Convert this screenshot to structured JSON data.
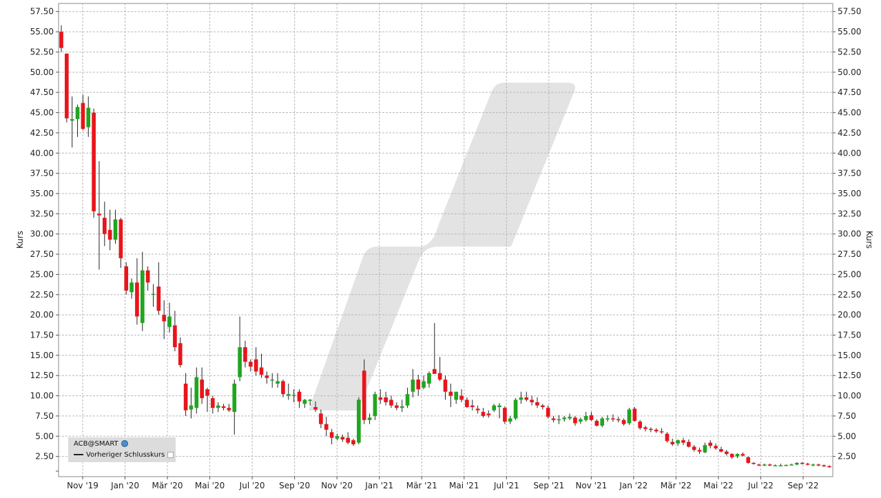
{
  "chart_data": {
    "type": "candlestick",
    "title": "",
    "ylabel_left": "Kurs",
    "ylabel_right": "Kurs",
    "ylim": [
      0,
      58.5
    ],
    "yticks": [
      2.5,
      5,
      7.5,
      10,
      12.5,
      15,
      17.5,
      20,
      22.5,
      25,
      27.5,
      30,
      32.5,
      35,
      37.5,
      40,
      42.5,
      45,
      47.5,
      50,
      52.5,
      55,
      57.5
    ],
    "ytick_labels": [
      "2.50",
      "5.00",
      "7.50",
      "10.00",
      "12.50",
      "15.00",
      "17.50",
      "20.00",
      "22.50",
      "25.00",
      "27.50",
      "30.00",
      "32.50",
      "35.00",
      "37.50",
      "40.00",
      "42.50",
      "45.00",
      "47.50",
      "50.00",
      "52.50",
      "55.00",
      "57.50"
    ],
    "xtick_labels": [
      "Nov '19",
      "Jan '20",
      "Mär '20",
      "Mai '20",
      "Jul '20",
      "Sep '20",
      "Nov '20",
      "Jan '21",
      "Mär '21",
      "Mai '21",
      "Jul '21",
      "Sep '21",
      "Nov '21",
      "Jan '22",
      "Mär '22",
      "Mai '22",
      "Jul '22",
      "Sep '22"
    ],
    "grid": true,
    "legend_placement": "bottom-left",
    "legend": {
      "symbol": "ACB@SMART",
      "reference_line": "Vorheriger Schlusskurs"
    },
    "colors": {
      "up": "#1fa61f",
      "down": "#e8151b",
      "wick": "#222222",
      "grid": "#b8b8b8"
    },
    "candles": [
      [
        55.0,
        55.8,
        52.5,
        53.0
      ],
      [
        52.3,
        52.3,
        43.8,
        44.3
      ],
      [
        44.0,
        47.0,
        40.7,
        44.2
      ],
      [
        44.2,
        46.0,
        42.0,
        45.7
      ],
      [
        46.2,
        47.2,
        42.8,
        43.0
      ],
      [
        43.2,
        47.0,
        42.0,
        45.6
      ],
      [
        45.0,
        45.5,
        32.0,
        32.8
      ],
      [
        32.5,
        39.0,
        25.6,
        32.3
      ],
      [
        32.0,
        34.0,
        28.5,
        30.0
      ],
      [
        30.5,
        33.0,
        28.0,
        29.3
      ],
      [
        29.3,
        33.0,
        28.8,
        31.8
      ],
      [
        31.8,
        32.0,
        25.8,
        27.0
      ],
      [
        26.0,
        26.5,
        22.5,
        23.0
      ],
      [
        22.8,
        24.5,
        22.0,
        24.0
      ],
      [
        24.0,
        27.0,
        18.8,
        19.8
      ],
      [
        19.0,
        27.8,
        18.0,
        25.5
      ],
      [
        25.5,
        26.0,
        23.0,
        24.0
      ],
      [
        22.6,
        23.8,
        21.0,
        22.6
      ],
      [
        23.5,
        26.5,
        20.0,
        20.5
      ],
      [
        20.0,
        21.8,
        17.0,
        19.2
      ],
      [
        18.5,
        21.5,
        17.8,
        19.8
      ],
      [
        18.7,
        20.5,
        15.5,
        16.0
      ],
      [
        16.5,
        17.2,
        13.5,
        13.8
      ],
      [
        11.5,
        12.8,
        7.5,
        8.2
      ],
      [
        8.3,
        11.0,
        7.2,
        8.8
      ],
      [
        8.5,
        13.5,
        7.8,
        12.3
      ],
      [
        12.0,
        13.5,
        9.0,
        9.7
      ],
      [
        10.8,
        11.0,
        8.0,
        10.0
      ],
      [
        9.7,
        10.0,
        7.8,
        8.5
      ],
      [
        8.5,
        9.2,
        8.0,
        8.8
      ],
      [
        8.7,
        9.0,
        8.2,
        8.5
      ],
      [
        8.5,
        9.0,
        8.0,
        8.2
      ],
      [
        8.0,
        12.0,
        5.2,
        11.5
      ],
      [
        12.3,
        19.8,
        11.8,
        16.0
      ],
      [
        16.0,
        16.8,
        13.5,
        14.2
      ],
      [
        14.2,
        14.5,
        13.0,
        13.6
      ],
      [
        14.5,
        16.0,
        12.5,
        13.0
      ],
      [
        13.5,
        15.2,
        12.2,
        12.6
      ],
      [
        12.5,
        13.0,
        11.5,
        12.2
      ],
      [
        12.0,
        12.8,
        11.0,
        12.0
      ],
      [
        11.5,
        12.8,
        11.0,
        11.8
      ],
      [
        11.8,
        12.0,
        9.8,
        10.2
      ],
      [
        10.0,
        11.5,
        9.5,
        10.2
      ],
      [
        10.1,
        10.8,
        9.2,
        10.1
      ],
      [
        10.5,
        10.8,
        8.5,
        9.3
      ],
      [
        9.0,
        9.6,
        8.5,
        9.5
      ],
      [
        9.5,
        9.6,
        8.8,
        9.5
      ],
      [
        8.6,
        9.3,
        8.0,
        8.3
      ],
      [
        7.8,
        8.3,
        6.0,
        6.5
      ],
      [
        6.5,
        7.4,
        5.0,
        5.8
      ],
      [
        5.5,
        5.9,
        4.0,
        4.8
      ],
      [
        4.7,
        5.3,
        4.5,
        5.0
      ],
      [
        4.9,
        5.2,
        4.3,
        4.6
      ],
      [
        4.8,
        5.5,
        4.0,
        4.2
      ],
      [
        4.5,
        4.7,
        3.8,
        4.0
      ],
      [
        4.2,
        9.8,
        4.0,
        9.5
      ],
      [
        13.1,
        14.5,
        6.5,
        7.0
      ],
      [
        7.0,
        7.8,
        6.5,
        7.3
      ],
      [
        7.5,
        10.5,
        7.0,
        10.2
      ],
      [
        9.8,
        10.8,
        9.0,
        9.5
      ],
      [
        9.8,
        10.5,
        8.8,
        9.2
      ],
      [
        9.5,
        10.0,
        8.5,
        8.8
      ],
      [
        8.8,
        9.2,
        8.2,
        8.5
      ],
      [
        8.5,
        9.5,
        8.0,
        8.7
      ],
      [
        8.8,
        11.0,
        8.5,
        10.2
      ],
      [
        10.5,
        13.3,
        9.8,
        12.0
      ],
      [
        12.0,
        12.6,
        10.0,
        10.8
      ],
      [
        11.0,
        12.5,
        10.8,
        11.8
      ],
      [
        11.5,
        13.0,
        11.0,
        12.8
      ],
      [
        13.3,
        19.0,
        12.8,
        12.7
      ],
      [
        12.8,
        14.8,
        11.8,
        12.0
      ],
      [
        12.0,
        12.5,
        9.5,
        10.5
      ],
      [
        10.5,
        11.5,
        8.6,
        10.0
      ],
      [
        9.5,
        10.5,
        9.0,
        10.5
      ],
      [
        10.0,
        10.8,
        9.2,
        9.5
      ],
      [
        9.5,
        9.8,
        8.5,
        8.6
      ],
      [
        8.8,
        9.5,
        8.2,
        8.6
      ],
      [
        8.4,
        8.8,
        7.8,
        8.2
      ],
      [
        8.0,
        8.5,
        7.3,
        7.5
      ],
      [
        7.8,
        8.2,
        7.3,
        7.6
      ],
      [
        8.2,
        9.0,
        8.0,
        8.8
      ],
      [
        8.6,
        9.1,
        7.2,
        8.8
      ],
      [
        8.5,
        8.7,
        6.5,
        6.8
      ],
      [
        6.8,
        7.5,
        6.5,
        7.2
      ],
      [
        7.2,
        9.7,
        7.0,
        9.5
      ],
      [
        9.5,
        10.5,
        9.0,
        9.8
      ],
      [
        9.8,
        10.5,
        9.3,
        9.5
      ],
      [
        9.5,
        10.0,
        8.8,
        9.2
      ],
      [
        9.2,
        9.8,
        8.5,
        8.8
      ],
      [
        8.8,
        9.0,
        8.3,
        8.6
      ],
      [
        8.5,
        8.8,
        7.2,
        7.4
      ],
      [
        7.2,
        7.5,
        6.7,
        7.0
      ],
      [
        7.0,
        7.6,
        6.5,
        7.1
      ],
      [
        7.1,
        7.5,
        6.8,
        7.3
      ],
      [
        7.2,
        7.8,
        7.0,
        7.4
      ],
      [
        7.3,
        7.5,
        6.3,
        6.6
      ],
      [
        6.8,
        7.3,
        6.5,
        7.1
      ],
      [
        7.0,
        8.0,
        6.8,
        7.5
      ],
      [
        7.6,
        8.0,
        6.9,
        7.0
      ],
      [
        6.9,
        7.1,
        6.2,
        6.3
      ],
      [
        6.3,
        7.4,
        6.1,
        7.2
      ],
      [
        7.1,
        7.6,
        6.8,
        7.2
      ],
      [
        7.2,
        7.7,
        6.8,
        7.1
      ],
      [
        7.1,
        7.4,
        6.7,
        7.0
      ],
      [
        7.0,
        7.2,
        6.3,
        6.5
      ],
      [
        6.6,
        8.5,
        6.4,
        8.3
      ],
      [
        8.4,
        8.6,
        6.8,
        6.9
      ],
      [
        6.8,
        7.0,
        5.8,
        6.0
      ],
      [
        6.1,
        6.3,
        5.6,
        5.9
      ],
      [
        5.9,
        6.1,
        5.5,
        5.8
      ],
      [
        5.8,
        6.0,
        5.4,
        5.6
      ],
      [
        5.6,
        6.0,
        5.3,
        5.5
      ],
      [
        5.3,
        5.5,
        4.2,
        4.4
      ],
      [
        4.3,
        4.7,
        3.8,
        4.0
      ],
      [
        4.1,
        4.6,
        3.8,
        4.5
      ],
      [
        4.5,
        4.8,
        3.9,
        4.2
      ],
      [
        4.3,
        4.6,
        3.6,
        3.7
      ],
      [
        3.7,
        3.9,
        3.1,
        3.3
      ],
      [
        3.3,
        3.6,
        2.8,
        3.1
      ],
      [
        3.0,
        4.2,
        2.9,
        3.9
      ],
      [
        4.2,
        4.5,
        3.5,
        3.8
      ],
      [
        3.8,
        4.1,
        3.3,
        3.5
      ],
      [
        3.4,
        3.7,
        3.0,
        3.1
      ],
      [
        3.1,
        3.3,
        2.6,
        2.8
      ],
      [
        2.8,
        2.9,
        2.2,
        2.4
      ],
      [
        2.5,
        2.9,
        2.3,
        2.8
      ],
      [
        2.8,
        3.0,
        2.5,
        2.6
      ],
      [
        2.4,
        2.5,
        1.6,
        1.7
      ],
      [
        1.7,
        1.8,
        1.5,
        1.6
      ],
      [
        1.5,
        1.6,
        1.3,
        1.4
      ],
      [
        1.4,
        1.6,
        1.3,
        1.5
      ],
      [
        1.5,
        1.6,
        1.3,
        1.4
      ],
      [
        1.4,
        1.5,
        1.3,
        1.4
      ],
      [
        1.4,
        1.6,
        1.3,
        1.4
      ],
      [
        1.4,
        1.5,
        1.3,
        1.45
      ],
      [
        1.45,
        1.6,
        1.4,
        1.5
      ],
      [
        1.5,
        1.8,
        1.4,
        1.7
      ],
      [
        1.7,
        1.8,
        1.5,
        1.6
      ],
      [
        1.6,
        1.7,
        1.4,
        1.5
      ],
      [
        1.5,
        1.6,
        1.3,
        1.5
      ],
      [
        1.5,
        1.6,
        1.3,
        1.4
      ],
      [
        1.4,
        1.5,
        1.2,
        1.3
      ],
      [
        1.3,
        1.4,
        1.1,
        1.2
      ]
    ]
  }
}
